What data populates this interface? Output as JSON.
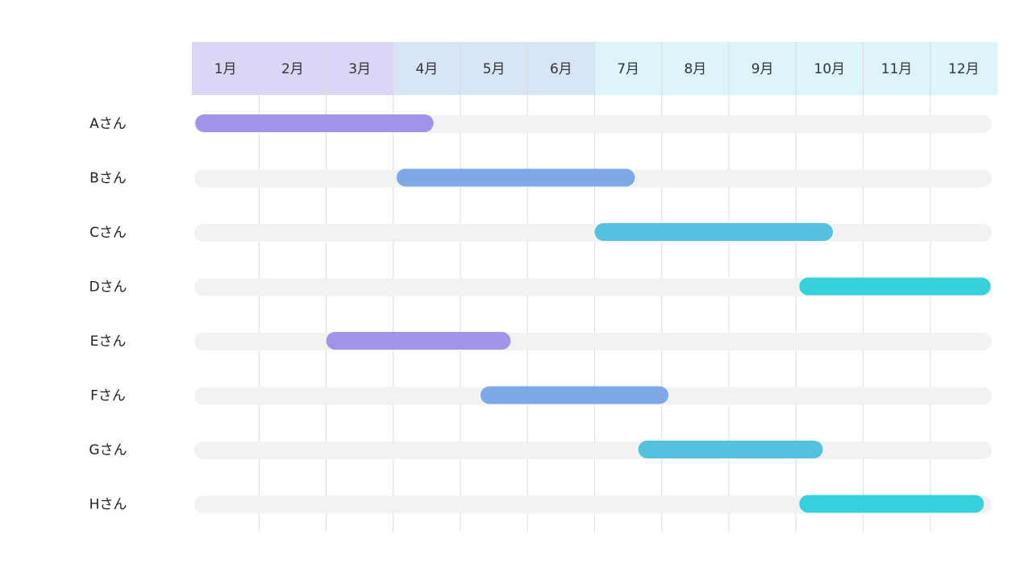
{
  "chart_data": {
    "type": "gantt",
    "months": [
      "1月",
      "2月",
      "3月",
      "4月",
      "5月",
      "6月",
      "7月",
      "8月",
      "9月",
      "10月",
      "11月",
      "12月"
    ],
    "header_colors": [
      "#dcd5f6",
      "#dcd5f6",
      "#dcd5f6",
      "#d8e5f7",
      "#d8e5f7",
      "#d8e5f7",
      "#ddf5f9",
      "#ddf5f9",
      "#ddf5f9",
      "#ddf5f9",
      "#ddf5f9",
      "#ddf5f9"
    ],
    "track_color": "#f2f2f2",
    "grid_color": "#dcdcdc",
    "tasks": [
      {
        "label": "Aさん",
        "start": 0.05,
        "end": 3.6,
        "color": "#a394ea"
      },
      {
        "label": "Bさん",
        "start": 3.05,
        "end": 6.6,
        "color": "#7fa8e6"
      },
      {
        "label": "Cさん",
        "start": 6.0,
        "end": 9.55,
        "color": "#55c1e0"
      },
      {
        "label": "Dさん",
        "start": 9.05,
        "end": 11.9,
        "color": "#36d1dd"
      },
      {
        "label": "Eさん",
        "start": 2.0,
        "end": 4.75,
        "color": "#a394ea"
      },
      {
        "label": "Fさん",
        "start": 4.3,
        "end": 7.1,
        "color": "#7fa8e6"
      },
      {
        "label": "Gさん",
        "start": 6.65,
        "end": 9.4,
        "color": "#55c1e0"
      },
      {
        "label": "Hさん",
        "start": 9.05,
        "end": 11.8,
        "color": "#36d1dd"
      }
    ]
  }
}
